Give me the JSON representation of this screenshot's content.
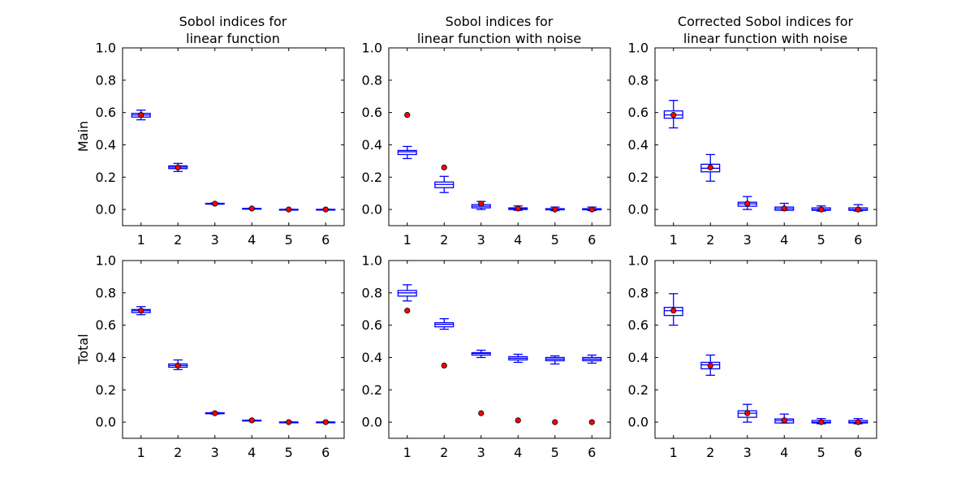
{
  "figure": {
    "row_labels": [
      "Main",
      "Total"
    ],
    "column_titles": [
      [
        "Sobol indices for",
        "linear function"
      ],
      [
        "Sobol indices for",
        "linear function with noise"
      ],
      [
        "Corrected Sobol indices for",
        "linear function with noise"
      ]
    ]
  },
  "colors": {
    "box": "#0000ff",
    "true_marker": "#ff0000",
    "axes": "#000000",
    "background": "#ffffff"
  },
  "chart_data": [
    {
      "type": "box",
      "row": "Main",
      "title": "Sobol indices for\nlinear function",
      "ylabel": "Main",
      "ylim": [
        -0.1,
        1.0
      ],
      "yticks": [
        0.0,
        0.2,
        0.4,
        0.6,
        0.8,
        1.0
      ],
      "categories": [
        "1",
        "2",
        "3",
        "4",
        "5",
        "6"
      ],
      "boxes": [
        {
          "whislo": 0.555,
          "q1": 0.572,
          "med": 0.585,
          "q3": 0.595,
          "whishi": 0.615
        },
        {
          "whislo": 0.235,
          "q1": 0.253,
          "med": 0.262,
          "q3": 0.27,
          "whishi": 0.285
        },
        {
          "whislo": 0.032,
          "q1": 0.034,
          "med": 0.036,
          "q3": 0.038,
          "whishi": 0.04
        },
        {
          "whislo": 0.004,
          "q1": 0.005,
          "med": 0.006,
          "q3": 0.007,
          "whishi": 0.008
        },
        {
          "whislo": -0.001,
          "q1": 0.0,
          "med": 0.0,
          "q3": 0.001,
          "whishi": 0.002
        },
        {
          "whislo": -0.001,
          "q1": 0.0,
          "med": 0.0,
          "q3": 0.001,
          "whishi": 0.002
        }
      ],
      "true_values": [
        0.585,
        0.26,
        0.036,
        0.006,
        0.0,
        0.0
      ]
    },
    {
      "type": "box",
      "row": "Main",
      "title": "Sobol indices for\nlinear function with noise",
      "ylabel": "",
      "ylim": [
        -0.1,
        1.0
      ],
      "yticks": [
        0.0,
        0.2,
        0.4,
        0.6,
        0.8,
        1.0
      ],
      "categories": [
        "1",
        "2",
        "3",
        "4",
        "5",
        "6"
      ],
      "boxes": [
        {
          "whislo": 0.315,
          "q1": 0.34,
          "med": 0.357,
          "q3": 0.365,
          "whishi": 0.39
        },
        {
          "whislo": 0.105,
          "q1": 0.135,
          "med": 0.155,
          "q3": 0.17,
          "whishi": 0.205
        },
        {
          "whislo": 0.0,
          "q1": 0.01,
          "med": 0.02,
          "q3": 0.03,
          "whishi": 0.05
        },
        {
          "whislo": -0.005,
          "q1": 0.0,
          "med": 0.005,
          "q3": 0.01,
          "whishi": 0.022
        },
        {
          "whislo": -0.007,
          "q1": -0.002,
          "med": 0.002,
          "q3": 0.005,
          "whishi": 0.015
        },
        {
          "whislo": -0.007,
          "q1": -0.002,
          "med": 0.002,
          "q3": 0.005,
          "whishi": 0.015
        }
      ],
      "true_values": [
        0.585,
        0.26,
        0.036,
        0.006,
        0.0,
        0.0
      ]
    },
    {
      "type": "box",
      "row": "Main",
      "title": "Corrected Sobol indices for\nlinear function with noise",
      "ylabel": "",
      "ylim": [
        -0.1,
        1.0
      ],
      "yticks": [
        0.0,
        0.2,
        0.4,
        0.6,
        0.8,
        1.0
      ],
      "categories": [
        "1",
        "2",
        "3",
        "4",
        "5",
        "6"
      ],
      "boxes": [
        {
          "whislo": 0.505,
          "q1": 0.565,
          "med": 0.585,
          "q3": 0.61,
          "whishi": 0.675
        },
        {
          "whislo": 0.175,
          "q1": 0.233,
          "med": 0.255,
          "q3": 0.28,
          "whishi": 0.34
        },
        {
          "whislo": 0.0,
          "q1": 0.02,
          "med": 0.035,
          "q3": 0.045,
          "whishi": 0.08
        },
        {
          "whislo": -0.005,
          "q1": -0.005,
          "med": 0.005,
          "q3": 0.015,
          "whishi": 0.038
        },
        {
          "whislo": -0.01,
          "q1": -0.005,
          "med": 0.0,
          "q3": 0.01,
          "whishi": 0.022
        },
        {
          "whislo": -0.01,
          "q1": -0.005,
          "med": 0.0,
          "q3": 0.01,
          "whishi": 0.03
        }
      ],
      "true_values": [
        0.585,
        0.26,
        0.036,
        0.006,
        0.0,
        0.0
      ]
    },
    {
      "type": "box",
      "row": "Total",
      "title": "",
      "ylabel": "Total",
      "ylim": [
        -0.1,
        1.0
      ],
      "yticks": [
        0.0,
        0.2,
        0.4,
        0.6,
        0.8,
        1.0
      ],
      "categories": [
        "1",
        "2",
        "3",
        "4",
        "5",
        "6"
      ],
      "boxes": [
        {
          "whislo": 0.665,
          "q1": 0.678,
          "med": 0.69,
          "q3": 0.697,
          "whishi": 0.715
        },
        {
          "whislo": 0.325,
          "q1": 0.34,
          "med": 0.35,
          "q3": 0.36,
          "whishi": 0.385
        },
        {
          "whislo": 0.05,
          "q1": 0.052,
          "med": 0.055,
          "q3": 0.058,
          "whishi": 0.06
        },
        {
          "whislo": 0.009,
          "q1": 0.01,
          "med": 0.011,
          "q3": 0.012,
          "whishi": 0.013
        },
        {
          "whislo": -0.001,
          "q1": 0.0,
          "med": 0.0,
          "q3": 0.001,
          "whishi": 0.002
        },
        {
          "whislo": -0.001,
          "q1": 0.0,
          "med": 0.0,
          "q3": 0.001,
          "whishi": 0.002
        }
      ],
      "true_values": [
        0.69,
        0.35,
        0.055,
        0.011,
        0.0,
        0.0
      ]
    },
    {
      "type": "box",
      "row": "Total",
      "title": "",
      "ylabel": "",
      "ylim": [
        -0.1,
        1.0
      ],
      "yticks": [
        0.0,
        0.2,
        0.4,
        0.6,
        0.8,
        1.0
      ],
      "categories": [
        "1",
        "2",
        "3",
        "4",
        "5",
        "6"
      ],
      "boxes": [
        {
          "whislo": 0.75,
          "q1": 0.78,
          "med": 0.8,
          "q3": 0.815,
          "whishi": 0.85
        },
        {
          "whislo": 0.575,
          "q1": 0.59,
          "med": 0.605,
          "q3": 0.615,
          "whishi": 0.64
        },
        {
          "whislo": 0.4,
          "q1": 0.415,
          "med": 0.425,
          "q3": 0.43,
          "whishi": 0.445
        },
        {
          "whislo": 0.37,
          "q1": 0.385,
          "med": 0.395,
          "q3": 0.405,
          "whishi": 0.42
        },
        {
          "whislo": 0.36,
          "q1": 0.38,
          "med": 0.39,
          "q3": 0.4,
          "whishi": 0.41
        },
        {
          "whislo": 0.365,
          "q1": 0.38,
          "med": 0.39,
          "q3": 0.4,
          "whishi": 0.415
        }
      ],
      "true_values": [
        0.69,
        0.35,
        0.055,
        0.011,
        0.0,
        0.0
      ]
    },
    {
      "type": "box",
      "row": "Total",
      "title": "",
      "ylabel": "",
      "ylim": [
        -0.1,
        1.0
      ],
      "yticks": [
        0.0,
        0.2,
        0.4,
        0.6,
        0.8,
        1.0
      ],
      "categories": [
        "1",
        "2",
        "3",
        "4",
        "5",
        "6"
      ],
      "boxes": [
        {
          "whislo": 0.6,
          "q1": 0.66,
          "med": 0.69,
          "q3": 0.71,
          "whishi": 0.795
        },
        {
          "whislo": 0.29,
          "q1": 0.33,
          "med": 0.355,
          "q3": 0.37,
          "whishi": 0.415
        },
        {
          "whislo": 0.0,
          "q1": 0.03,
          "med": 0.055,
          "q3": 0.07,
          "whishi": 0.11
        },
        {
          "whislo": -0.005,
          "q1": -0.005,
          "med": 0.01,
          "q3": 0.02,
          "whishi": 0.05
        },
        {
          "whislo": -0.01,
          "q1": -0.005,
          "med": 0.0,
          "q3": 0.01,
          "whishi": 0.022
        },
        {
          "whislo": -0.01,
          "q1": -0.005,
          "med": 0.0,
          "q3": 0.01,
          "whishi": 0.022
        }
      ],
      "true_values": [
        0.69,
        0.35,
        0.055,
        0.011,
        0.0,
        0.0
      ]
    }
  ]
}
